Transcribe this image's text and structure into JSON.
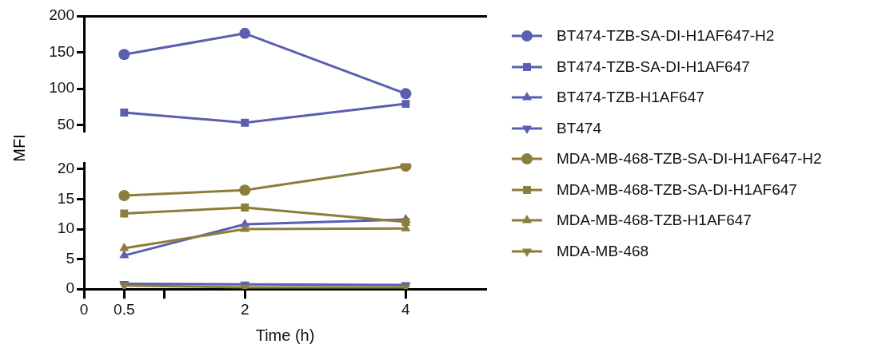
{
  "chart_data": [
    {
      "type": "line",
      "xlim": [
        0,
        5
      ],
      "ylim": [
        40,
        200
      ],
      "yticks": [
        50,
        100,
        150,
        200
      ],
      "tick_labels": "y",
      "grid": false,
      "legend": "right",
      "x": [
        0.5,
        2,
        4
      ],
      "series": [
        {
          "name": "BT474-TZB-SA-DI-H1AF647-H2",
          "color": "#5a5fb0",
          "marker": "circle",
          "values": [
            147,
            176,
            93
          ]
        },
        {
          "name": "BT474-TZB-SA-DI-H1AF647",
          "color": "#5a5fb0",
          "marker": "square",
          "values": [
            67,
            53,
            79
          ]
        }
      ]
    },
    {
      "type": "line",
      "xlim": [
        0,
        5
      ],
      "xticks": [
        0,
        0.5,
        {
          "value": 1,
          "label": null
        },
        2,
        4
      ],
      "ylim": [
        0,
        21
      ],
      "yticks": [
        0,
        5,
        10,
        15,
        20
      ],
      "xlabel": "Time (h)",
      "ylabel": "MFI",
      "grid": false,
      "legend": "right",
      "x": [
        0.5,
        2,
        4
      ],
      "series": [
        {
          "name": "BT474-TZB-H1AF647",
          "color": "#5a5fb0",
          "marker": "triangle",
          "values": [
            5.6,
            10.8,
            11.6
          ]
        },
        {
          "name": "BT474",
          "color": "#5a5fb0",
          "marker": "triangle-down",
          "values": [
            0.9,
            0.8,
            0.7
          ]
        },
        {
          "name": "MDA-MB-468-TZB-SA-DI-H1AF647-H2",
          "color": "#8c7d3a",
          "marker": "circle",
          "values": [
            15.6,
            16.5,
            20.5
          ]
        },
        {
          "name": "MDA-MB-468-TZB-SA-DI-H1AF647",
          "color": "#8c7d3a",
          "marker": "square",
          "values": [
            12.6,
            13.6,
            11.2
          ]
        },
        {
          "name": "MDA-MB-468-TZB-H1AF647",
          "color": "#8c7d3a",
          "marker": "triangle",
          "values": [
            6.8,
            10.0,
            10.1
          ]
        },
        {
          "name": "MDA-MB-468",
          "color": "#8c7d3a",
          "marker": "triangle-down",
          "values": [
            0.6,
            0.3,
            0.3
          ]
        }
      ]
    }
  ]
}
